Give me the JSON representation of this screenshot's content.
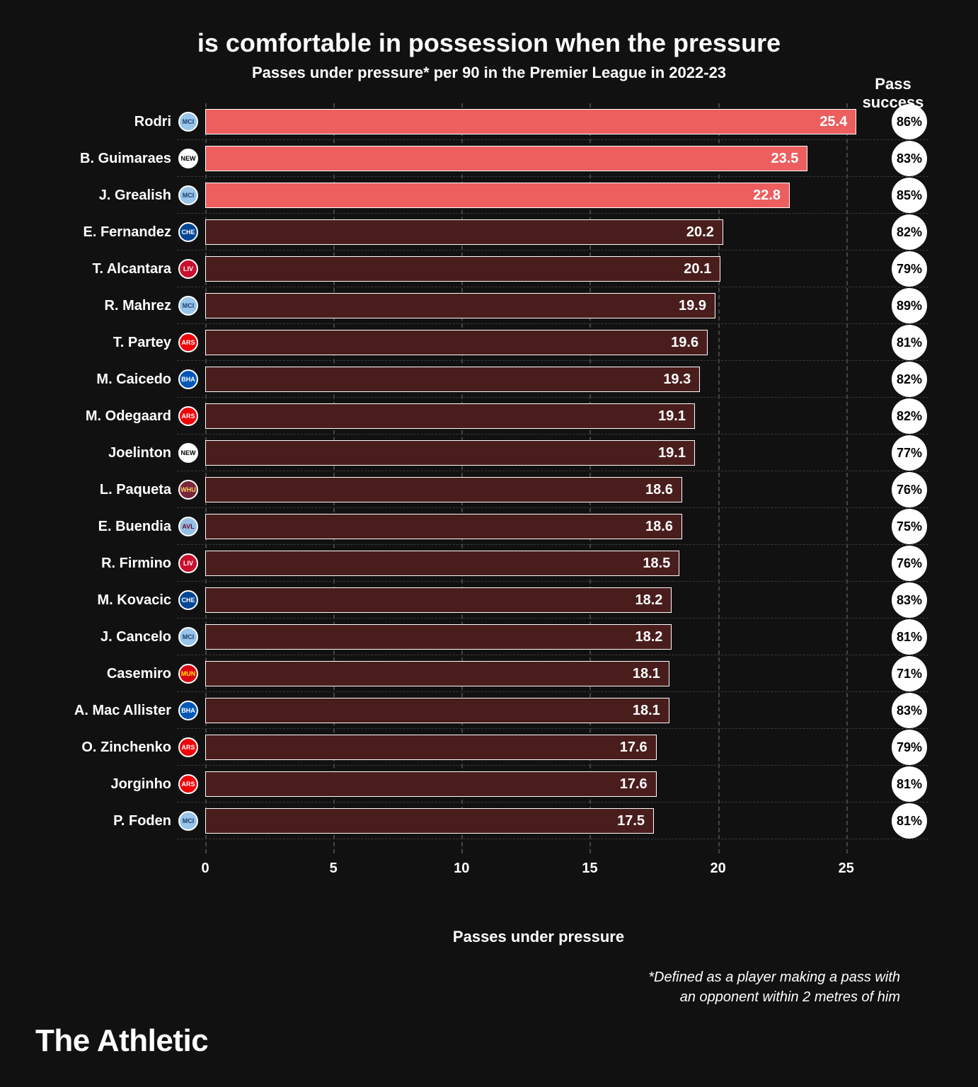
{
  "title": "is comfortable in possession when the pressure",
  "subtitle": "Passes under pressure* per 90 in the Premier League in 2022-23",
  "pass_success_header": "Pass success",
  "x_label": "Passes under pressure",
  "footnote_line1": "*Defined as a player making a pass with",
  "footnote_line2": "an opponent within 2 metres of him",
  "brand": "The Athletic",
  "chart": {
    "type": "bar",
    "x_max": 26,
    "x_ticks": [
      0,
      5,
      10,
      15,
      20,
      25
    ],
    "bar_border": "#ffffff",
    "highlight_color": "#ed5e5e",
    "normal_color": "#4a1d1d",
    "grid_color": "#444444",
    "background": "#111111",
    "badge_bg": "#ffffff",
    "badge_fg": "#000000",
    "rows": [
      {
        "player": "Rodri",
        "team": "MCI",
        "crest_bg": "#98c5e9",
        "crest_fg": "#1b3d6e",
        "value": 25.4,
        "success": "86%",
        "highlight": true
      },
      {
        "player": "B. Guimaraes",
        "team": "NEW",
        "crest_bg": "#ffffff",
        "crest_fg": "#000000",
        "value": 23.5,
        "success": "83%",
        "highlight": true
      },
      {
        "player": "J. Grealish",
        "team": "MCI",
        "crest_bg": "#98c5e9",
        "crest_fg": "#1b3d6e",
        "value": 22.8,
        "success": "85%",
        "highlight": true
      },
      {
        "player": "E. Fernandez",
        "team": "CHE",
        "crest_bg": "#034694",
        "crest_fg": "#ffffff",
        "value": 20.2,
        "success": "82%",
        "highlight": false
      },
      {
        "player": "T. Alcantara",
        "team": "LIV",
        "crest_bg": "#c8102e",
        "crest_fg": "#ffffff",
        "value": 20.1,
        "success": "79%",
        "highlight": false
      },
      {
        "player": "R. Mahrez",
        "team": "MCI",
        "crest_bg": "#98c5e9",
        "crest_fg": "#1b3d6e",
        "value": 19.9,
        "success": "89%",
        "highlight": false
      },
      {
        "player": "T. Partey",
        "team": "ARS",
        "crest_bg": "#ef0107",
        "crest_fg": "#ffffff",
        "value": 19.6,
        "success": "81%",
        "highlight": false
      },
      {
        "player": "M. Caicedo",
        "team": "BHA",
        "crest_bg": "#0057b8",
        "crest_fg": "#ffffff",
        "value": 19.3,
        "success": "82%",
        "highlight": false
      },
      {
        "player": "M. Odegaard",
        "team": "ARS",
        "crest_bg": "#ef0107",
        "crest_fg": "#ffffff",
        "value": 19.1,
        "success": "82%",
        "highlight": false
      },
      {
        "player": "Joelinton",
        "team": "NEW",
        "crest_bg": "#ffffff",
        "crest_fg": "#000000",
        "value": 19.1,
        "success": "77%",
        "highlight": false
      },
      {
        "player": "L. Paqueta",
        "team": "WHU",
        "crest_bg": "#7a263a",
        "crest_fg": "#f3d459",
        "value": 18.6,
        "success": "76%",
        "highlight": false
      },
      {
        "player": "E. Buendia",
        "team": "AVL",
        "crest_bg": "#95bfe5",
        "crest_fg": "#670e36",
        "value": 18.6,
        "success": "75%",
        "highlight": false
      },
      {
        "player": "R. Firmino",
        "team": "LIV",
        "crest_bg": "#c8102e",
        "crest_fg": "#ffffff",
        "value": 18.5,
        "success": "76%",
        "highlight": false
      },
      {
        "player": "M. Kovacic",
        "team": "CHE",
        "crest_bg": "#034694",
        "crest_fg": "#ffffff",
        "value": 18.2,
        "success": "83%",
        "highlight": false
      },
      {
        "player": "J. Cancelo",
        "team": "MCI",
        "crest_bg": "#98c5e9",
        "crest_fg": "#1b3d6e",
        "value": 18.2,
        "success": "81%",
        "highlight": false
      },
      {
        "player": "Casemiro",
        "team": "MUN",
        "crest_bg": "#da020e",
        "crest_fg": "#ffe500",
        "value": 18.1,
        "success": "71%",
        "highlight": false
      },
      {
        "player": "A. Mac Allister",
        "team": "BHA",
        "crest_bg": "#0057b8",
        "crest_fg": "#ffffff",
        "value": 18.1,
        "success": "83%",
        "highlight": false
      },
      {
        "player": "O. Zinchenko",
        "team": "ARS",
        "crest_bg": "#ef0107",
        "crest_fg": "#ffffff",
        "value": 17.6,
        "success": "79%",
        "highlight": false
      },
      {
        "player": "Jorginho",
        "team": "ARS",
        "crest_bg": "#ef0107",
        "crest_fg": "#ffffff",
        "value": 17.6,
        "success": "81%",
        "highlight": false
      },
      {
        "player": "P. Foden",
        "team": "MCI",
        "crest_bg": "#98c5e9",
        "crest_fg": "#1b3d6e",
        "value": 17.5,
        "success": "81%",
        "highlight": false
      }
    ]
  }
}
